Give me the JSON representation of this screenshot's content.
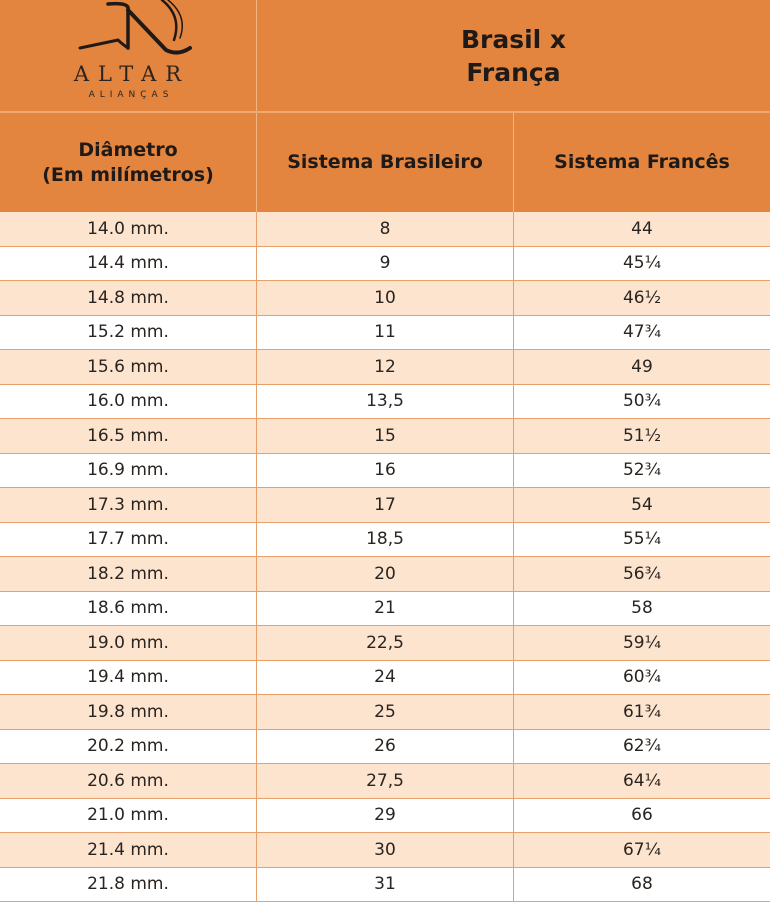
{
  "logo": {
    "brand": "ALTAR",
    "subtitle": "ALIANÇAS",
    "icon": "stylized-a-logo-icon"
  },
  "title": {
    "line1": "Brasil x",
    "line2": "França"
  },
  "headers": {
    "diameter_line1": "Diâmetro",
    "diameter_line2": "(Em milímetros)",
    "brazil": "Sistema Brasileiro",
    "france": "Sistema Francês"
  },
  "rows": [
    {
      "mm": "14.0 mm.",
      "br": "8",
      "fr": "44"
    },
    {
      "mm": "14.4 mm.",
      "br": "9",
      "fr": "45¼"
    },
    {
      "mm": "14.8 mm.",
      "br": "10",
      "fr": "46½"
    },
    {
      "mm": "15.2 mm.",
      "br": "11",
      "fr": "47¾"
    },
    {
      "mm": "15.6 mm.",
      "br": "12",
      "fr": "49"
    },
    {
      "mm": "16.0 mm.",
      "br": "13,5",
      "fr": "50¾"
    },
    {
      "mm": "16.5 mm.",
      "br": "15",
      "fr": "51½"
    },
    {
      "mm": "16.9 mm.",
      "br": "16",
      "fr": "52¾"
    },
    {
      "mm": "17.3 mm.",
      "br": "17",
      "fr": "54"
    },
    {
      "mm": "17.7 mm.",
      "br": "18,5",
      "fr": "55¼"
    },
    {
      "mm": "18.2 mm.",
      "br": "20",
      "fr": "56¾"
    },
    {
      "mm": "18.6 mm.",
      "br": "21",
      "fr": "58"
    },
    {
      "mm": "19.0 mm.",
      "br": "22,5",
      "fr": "59¼"
    },
    {
      "mm": "19.4 mm.",
      "br": "24",
      "fr": "60¾"
    },
    {
      "mm": "19.8 mm.",
      "br": "25",
      "fr": "61¾"
    },
    {
      "mm": "20.2 mm.",
      "br": "26",
      "fr": "62¾"
    },
    {
      "mm": "20.6 mm.",
      "br": "27,5",
      "fr": "64¼"
    },
    {
      "mm": "21.0 mm.",
      "br": "29",
      "fr": "66"
    },
    {
      "mm": "21.4 mm.",
      "br": "30",
      "fr": "67¼"
    },
    {
      "mm": "21.8 mm.",
      "br": "31",
      "fr": "68"
    }
  ],
  "colors": {
    "header_orange": "#e3853f",
    "row_alt": "#fde4cf",
    "grid_line": "#e8a06a"
  }
}
